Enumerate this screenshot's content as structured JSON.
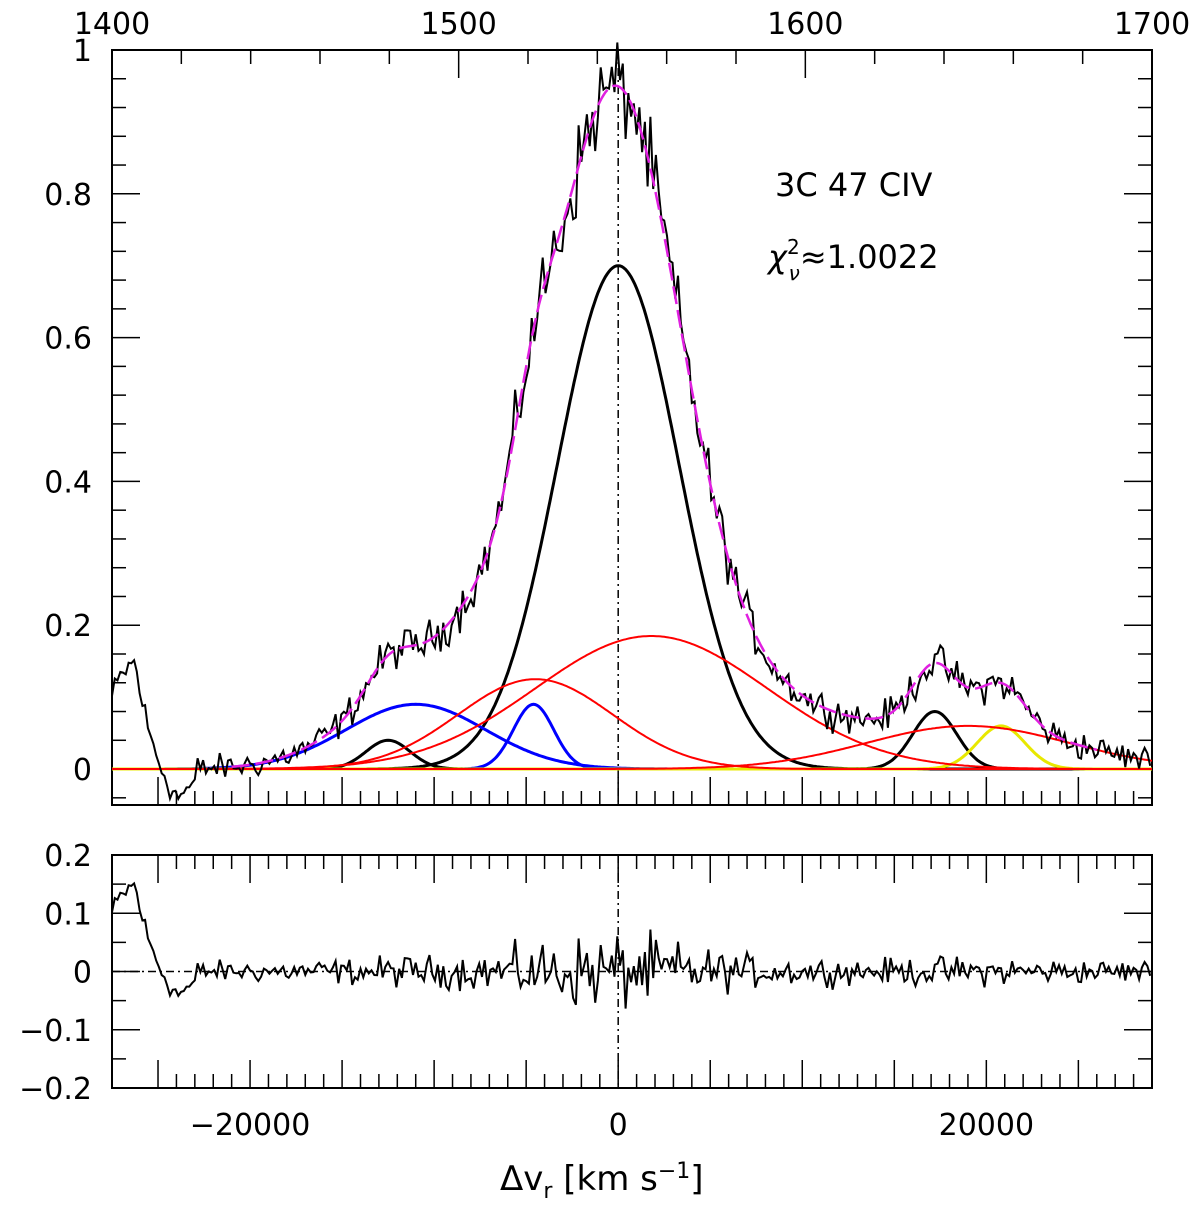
{
  "chart_data": [
    {
      "type": "line",
      "panel": "main",
      "title": "",
      "annotations": {
        "object": "3C 47 CIV",
        "chi_symbol": "χ",
        "chi_sup": "2",
        "chi_sub": "ν",
        "chi_value": "≈1.0022"
      },
      "xlabel": {
        "main": "Δv",
        "sub": "r",
        "units": " [km s",
        "exp": "−1",
        "close": "]"
      },
      "xlim": [
        -27500,
        29000
      ],
      "ylim": [
        -0.05,
        1.0
      ],
      "top_axis": {
        "label_values": [
          1400,
          1500,
          1600,
          1700
        ],
        "tick_labels": [
          "1400",
          "1500",
          "1600",
          "1700"
        ],
        "lim": [
          1400,
          1700
        ]
      },
      "y_tick_labels": [
        {
          "value": 0,
          "label": "0"
        },
        {
          "value": 0.2,
          "label": "0.2"
        },
        {
          "value": 0.4,
          "label": "0.4"
        },
        {
          "value": 0.6,
          "label": "0.6"
        },
        {
          "value": 0.8,
          "label": "0.8"
        },
        {
          "value": 1.0,
          "label": "1"
        }
      ],
      "x_tick_labels": [
        {
          "value": -20000,
          "label": "−20000"
        },
        {
          "value": 0,
          "label": "0"
        },
        {
          "value": 20000,
          "label": "20000"
        }
      ],
      "reference_line_x": 0,
      "colors": {
        "observed": "#000000",
        "total_fit": "#e020e0",
        "narrow": "#000000",
        "broad": "#ff0000",
        "blue_comp": "#0000ff",
        "yellow_comp": "#e8e800"
      },
      "components": [
        {
          "name": "",
          "color": "#000000",
          "amp": 0.7,
          "center": 0,
          "sigma": 3300
        },
        {
          "name": "",
          "color": "#0000ff",
          "amp": 0.09,
          "center": -4600,
          "sigma": 1100
        },
        {
          "name": "",
          "color": "#0000ff",
          "amp": 0.09,
          "center": -11000,
          "sigma": 3800
        },
        {
          "name": "",
          "color": "#000000",
          "amp": 0.04,
          "center": -12500,
          "sigma": 1200
        },
        {
          "name": "",
          "color": "#000000",
          "amp": 0.08,
          "center": 17200,
          "sigma": 1200
        },
        {
          "name": "",
          "color": "#e8e800",
          "amp": 0.06,
          "center": 20800,
          "sigma": 1300
        },
        {
          "name": "",
          "color": "#ff0000",
          "amp": 0.125,
          "center": -4500,
          "sigma": 4200
        },
        {
          "name": "",
          "color": "#ff0000",
          "amp": 0.185,
          "center": 1800,
          "sigma": 6300
        },
        {
          "name": "",
          "color": "#ff0000",
          "amp": 0.06,
          "center": 19000,
          "sigma": 5500
        }
      ],
      "observed_features": [
        {
          "x": -27500,
          "y": 0.1
        },
        {
          "x": -27000,
          "y": 0.13
        },
        {
          "x": -26300,
          "y": 0.15
        },
        {
          "x": -25500,
          "y": 0.05
        },
        {
          "x": -24800,
          "y": 0.0
        },
        {
          "x": -24000,
          "y": -0.04
        },
        {
          "x": -23000,
          "y": -0.02
        }
      ]
    },
    {
      "type": "line",
      "panel": "residuals",
      "xlim": [
        -27500,
        29000
      ],
      "ylim": [
        -0.2,
        0.2
      ],
      "y_tick_labels": [
        {
          "value": -0.2,
          "label": "−0.2"
        },
        {
          "value": -0.1,
          "label": "−0.1"
        },
        {
          "value": 0,
          "label": "0"
        },
        {
          "value": 0.1,
          "label": "0.1"
        },
        {
          "value": 0.2,
          "label": "0.2"
        }
      ],
      "reference_line_x": 0,
      "reference_line_y": 0
    }
  ]
}
